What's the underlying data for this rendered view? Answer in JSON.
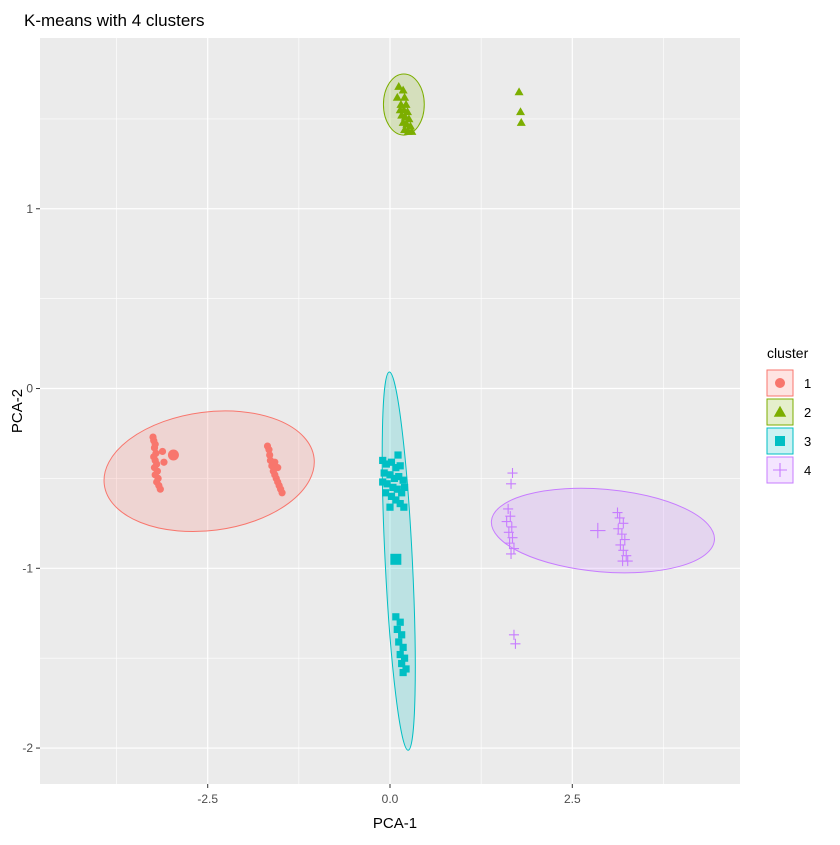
{
  "chart_data": {
    "type": "scatter",
    "title": "K-means with 4 clusters",
    "xlabel": "PCA-1",
    "ylabel": "PCA-2",
    "xlim": [
      -4.8,
      4.8
    ],
    "ylim": [
      -2.2,
      1.95
    ],
    "x_ticks": [
      {
        "value": -2.5,
        "label": "-2.5"
      },
      {
        "value": 0,
        "label": "0.0"
      },
      {
        "value": 2.5,
        "label": "2.5"
      }
    ],
    "y_ticks": [
      {
        "value": -2,
        "label": "-2"
      },
      {
        "value": -1,
        "label": "-1"
      },
      {
        "value": 0,
        "label": "0"
      },
      {
        "value": 1,
        "label": "1"
      }
    ],
    "grid": true,
    "legend": {
      "title": "cluster",
      "position": "right"
    },
    "series": [
      {
        "name": "1",
        "color": "#F8766D",
        "shape": "circle",
        "ellipse": {
          "cx": -2.48,
          "cy": -0.46,
          "rx": 1.44,
          "ry": 0.33,
          "angle_deg": 3
        },
        "center": [
          -2.97,
          -0.37
        ],
        "points": [
          [
            -3.25,
            -0.27
          ],
          [
            -3.24,
            -0.29
          ],
          [
            -3.22,
            -0.31
          ],
          [
            -3.23,
            -0.33
          ],
          [
            -3.21,
            -0.36
          ],
          [
            -3.24,
            -0.38
          ],
          [
            -3.22,
            -0.4
          ],
          [
            -3.2,
            -0.42
          ],
          [
            -3.23,
            -0.44
          ],
          [
            -3.19,
            -0.46
          ],
          [
            -3.22,
            -0.48
          ],
          [
            -3.18,
            -0.5
          ],
          [
            -3.2,
            -0.52
          ],
          [
            -3.17,
            -0.54
          ],
          [
            -3.15,
            -0.56
          ],
          [
            -3.12,
            -0.35
          ],
          [
            -3.1,
            -0.41
          ],
          [
            -1.68,
            -0.32
          ],
          [
            -1.66,
            -0.34
          ],
          [
            -1.65,
            -0.37
          ],
          [
            -1.64,
            -0.4
          ],
          [
            -1.62,
            -0.43
          ],
          [
            -1.6,
            -0.46
          ],
          [
            -1.58,
            -0.48
          ],
          [
            -1.56,
            -0.5
          ],
          [
            -1.54,
            -0.52
          ],
          [
            -1.52,
            -0.54
          ],
          [
            -1.5,
            -0.56
          ],
          [
            -1.48,
            -0.58
          ],
          [
            -1.58,
            -0.41
          ],
          [
            -1.54,
            -0.44
          ]
        ]
      },
      {
        "name": "2",
        "color": "#7CAE00",
        "shape": "triangle",
        "ellipse": {
          "cx": 0.19,
          "cy": 1.58,
          "rx": 0.28,
          "ry": 0.17,
          "angle_deg": 0
        },
        "center": [],
        "points": [
          [
            0.12,
            1.68
          ],
          [
            0.18,
            1.66
          ],
          [
            0.1,
            1.62
          ],
          [
            0.2,
            1.62
          ],
          [
            0.15,
            1.58
          ],
          [
            0.22,
            1.58
          ],
          [
            0.14,
            1.55
          ],
          [
            0.19,
            1.55
          ],
          [
            0.24,
            1.54
          ],
          [
            0.16,
            1.52
          ],
          [
            0.21,
            1.51
          ],
          [
            0.26,
            1.5
          ],
          [
            0.18,
            1.48
          ],
          [
            0.23,
            1.47
          ],
          [
            0.28,
            1.46
          ],
          [
            0.2,
            1.44
          ],
          [
            0.25,
            1.43
          ],
          [
            0.3,
            1.43
          ],
          [
            1.77,
            1.65
          ],
          [
            1.79,
            1.54
          ],
          [
            1.8,
            1.48
          ]
        ]
      },
      {
        "name": "3",
        "color": "#00BFC4",
        "shape": "square",
        "ellipse": {
          "cx": 0.12,
          "cy": -0.96,
          "rx": 1.06,
          "ry": 0.18,
          "angle_deg": -83
        },
        "center": [
          0.08,
          -0.95
        ],
        "points": [
          [
            -0.1,
            -0.4
          ],
          [
            -0.05,
            -0.42
          ],
          [
            0.02,
            -0.41
          ],
          [
            0.08,
            -0.44
          ],
          [
            0.14,
            -0.43
          ],
          [
            -0.08,
            -0.47
          ],
          [
            0.0,
            -0.48
          ],
          [
            0.06,
            -0.5
          ],
          [
            0.12,
            -0.49
          ],
          [
            0.18,
            -0.51
          ],
          [
            -0.04,
            -0.53
          ],
          [
            0.04,
            -0.55
          ],
          [
            0.1,
            -0.56
          ],
          [
            0.16,
            -0.58
          ],
          [
            0.02,
            -0.6
          ],
          [
            0.08,
            -0.62
          ],
          [
            0.14,
            -0.64
          ],
          [
            0.19,
            -0.66
          ],
          [
            0.0,
            -0.66
          ],
          [
            -0.06,
            -0.58
          ],
          [
            -0.1,
            -0.52
          ],
          [
            0.2,
            -0.55
          ],
          [
            0.11,
            -0.37
          ],
          [
            0.08,
            -1.27
          ],
          [
            0.14,
            -1.3
          ],
          [
            0.1,
            -1.34
          ],
          [
            0.16,
            -1.37
          ],
          [
            0.12,
            -1.41
          ],
          [
            0.18,
            -1.44
          ],
          [
            0.14,
            -1.48
          ],
          [
            0.2,
            -1.5
          ],
          [
            0.16,
            -1.53
          ],
          [
            0.22,
            -1.56
          ],
          [
            0.18,
            -1.58
          ]
        ]
      },
      {
        "name": "4",
        "color": "#C77CFF",
        "shape": "plus",
        "ellipse": {
          "cx": 2.92,
          "cy": -0.79,
          "rx": 1.53,
          "ry": 0.23,
          "angle_deg": -2
        },
        "center": [
          2.85,
          -0.79
        ],
        "points": [
          [
            1.68,
            -0.47
          ],
          [
            1.66,
            -0.53
          ],
          [
            1.62,
            -0.67
          ],
          [
            1.65,
            -0.71
          ],
          [
            1.6,
            -0.74
          ],
          [
            1.67,
            -0.77
          ],
          [
            1.63,
            -0.8
          ],
          [
            1.68,
            -0.83
          ],
          [
            1.64,
            -0.86
          ],
          [
            1.7,
            -0.89
          ],
          [
            1.66,
            -0.92
          ],
          [
            1.7,
            -1.37
          ],
          [
            1.72,
            -1.42
          ],
          [
            3.12,
            -0.69
          ],
          [
            3.15,
            -0.72
          ],
          [
            3.2,
            -0.75
          ],
          [
            3.13,
            -0.78
          ],
          [
            3.18,
            -0.81
          ],
          [
            3.22,
            -0.84
          ],
          [
            3.16,
            -0.87
          ],
          [
            3.2,
            -0.9
          ],
          [
            3.24,
            -0.93
          ],
          [
            3.19,
            -0.96
          ],
          [
            3.26,
            -0.96
          ]
        ]
      }
    ]
  }
}
